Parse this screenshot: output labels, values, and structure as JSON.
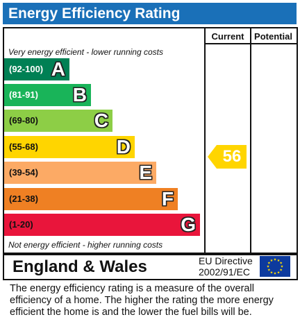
{
  "title": "Energy Efficiency Rating",
  "columns": {
    "current": "Current",
    "potential": "Potential"
  },
  "notes": {
    "top": "Very energy efficient - lower running costs",
    "bottom": "Not energy efficient - higher running costs"
  },
  "chart_data": {
    "type": "bar",
    "title": "Energy Efficiency Rating",
    "categories": [
      "A",
      "B",
      "C",
      "D",
      "E",
      "F",
      "G"
    ],
    "bands": [
      {
        "letter": "A",
        "range": "(92-100)",
        "color": "#008054",
        "range_color": "#ffffff"
      },
      {
        "letter": "B",
        "range": "(81-91)",
        "color": "#19b459",
        "range_color": "#ffffff"
      },
      {
        "letter": "C",
        "range": "(69-80)",
        "color": "#8dce46",
        "range_color": "#111111"
      },
      {
        "letter": "D",
        "range": "(55-68)",
        "color": "#ffd500",
        "range_color": "#111111"
      },
      {
        "letter": "E",
        "range": "(39-54)",
        "color": "#fcaa65",
        "range_color": "#111111"
      },
      {
        "letter": "F",
        "range": "(21-38)",
        "color": "#ef8023",
        "range_color": "#111111"
      },
      {
        "letter": "G",
        "range": "(1-20)",
        "color": "#e9153b",
        "range_color": "#111111"
      }
    ],
    "current": {
      "value": 56,
      "band": "D",
      "color": "#ffd500"
    },
    "potential": null
  },
  "footer": {
    "country": "England & Wales",
    "directive_line1": "EU Directive",
    "directive_line2": "2002/91/EC",
    "flag_color": "#0d3a9e",
    "star_color": "#ffdd00"
  },
  "description": "The energy efficiency rating is a measure of the overall efficiency of a home.  The higher the rating the more energy efficient the home is and the lower the fuel bills will be."
}
